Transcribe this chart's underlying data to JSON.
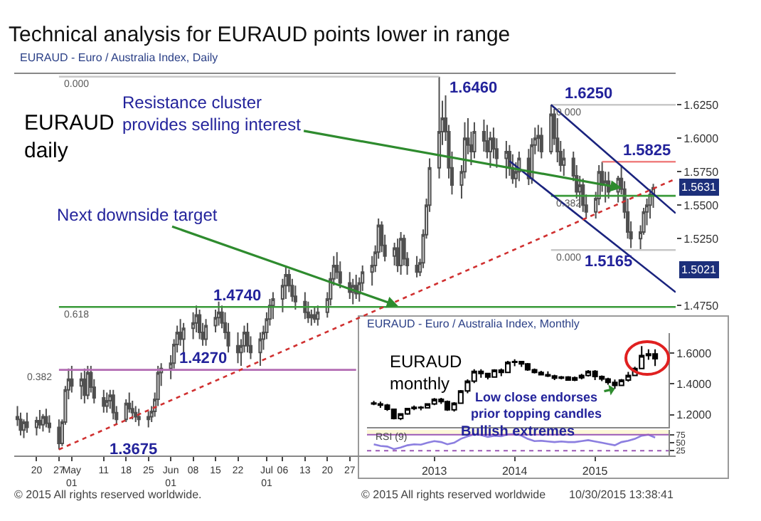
{
  "chart_data": [
    {
      "type": "candlestick",
      "title": "Technical analysis for EURAUD points lower in range",
      "subtitle": "EURAUD - Euro / Australia Index, Daily",
      "color": "#505050",
      "x": [
        "2015-04-14",
        "2015-04-15",
        "2015-04-16",
        "2015-04-17",
        "2015-04-20",
        "2015-04-21",
        "2015-04-22",
        "2015-04-23",
        "2015-04-24",
        "2015-04-27",
        "2015-04-28",
        "2015-04-29",
        "2015-04-30",
        "2015-05-01",
        "2015-05-04",
        "2015-05-05",
        "2015-05-06",
        "2015-05-07",
        "2015-05-08",
        "2015-05-11",
        "2015-05-12",
        "2015-05-13",
        "2015-05-14",
        "2015-05-15",
        "2015-05-18",
        "2015-05-19",
        "2015-05-20",
        "2015-05-21",
        "2015-05-22",
        "2015-05-25",
        "2015-05-26",
        "2015-05-27",
        "2015-05-28",
        "2015-05-29",
        "2015-06-01",
        "2015-06-02",
        "2015-06-03",
        "2015-06-04",
        "2015-06-05",
        "2015-06-08",
        "2015-06-09",
        "2015-06-10",
        "2015-06-11",
        "2015-06-12",
        "2015-06-15",
        "2015-06-16",
        "2015-06-17",
        "2015-06-18",
        "2015-06-19",
        "2015-06-22",
        "2015-06-23",
        "2015-06-24",
        "2015-06-25",
        "2015-06-26",
        "2015-06-29",
        "2015-06-30",
        "2015-07-01",
        "2015-07-02",
        "2015-07-03",
        "2015-07-06",
        "2015-07-07",
        "2015-07-08",
        "2015-07-09",
        "2015-07-10",
        "2015-07-13",
        "2015-07-14",
        "2015-07-15",
        "2015-07-16",
        "2015-07-17",
        "2015-07-20",
        "2015-07-21",
        "2015-07-22",
        "2015-07-23",
        "2015-07-24",
        "2015-07-27",
        "2015-07-28",
        "2015-07-29",
        "2015-07-30",
        "2015-07-31",
        "2015-08-03",
        "2015-08-04",
        "2015-08-05",
        "2015-08-06",
        "2015-08-07",
        "2015-08-10",
        "2015-08-11",
        "2015-08-12",
        "2015-08-13",
        "2015-08-14",
        "2015-08-17",
        "2015-08-18",
        "2015-08-19",
        "2015-08-20",
        "2015-08-21",
        "2015-08-24",
        "2015-08-25",
        "2015-08-26",
        "2015-08-27",
        "2015-08-28",
        "2015-08-31",
        "2015-09-01",
        "2015-09-02",
        "2015-09-03",
        "2015-09-04",
        "2015-09-07",
        "2015-09-08",
        "2015-09-09",
        "2015-09-10",
        "2015-09-11",
        "2015-09-14",
        "2015-09-15",
        "2015-09-16",
        "2015-09-17",
        "2015-09-18",
        "2015-09-21",
        "2015-09-22",
        "2015-09-23",
        "2015-09-24",
        "2015-09-25",
        "2015-09-28",
        "2015-09-29",
        "2015-09-30",
        "2015-10-01",
        "2015-10-02",
        "2015-10-05",
        "2015-10-06",
        "2015-10-07",
        "2015-10-08",
        "2015-10-09",
        "2015-10-12",
        "2015-10-13",
        "2015-10-14",
        "2015-10-15",
        "2015-10-16",
        "2015-10-19",
        "2015-10-20",
        "2015-10-21",
        "2015-10-22",
        "2015-10-23",
        "2015-10-26",
        "2015-10-27",
        "2015-10-28",
        "2015-10-29",
        "2015-10-30"
      ],
      "ohlc": [
        [
          1.392,
          1.4,
          1.385,
          1.39
        ],
        [
          1.39,
          1.395,
          1.378,
          1.382
        ],
        [
          1.382,
          1.39,
          1.376,
          1.388
        ],
        [
          1.388,
          1.395,
          1.38,
          1.384
        ],
        [
          1.384,
          1.392,
          1.378,
          1.389
        ],
        [
          1.389,
          1.397,
          1.383,
          1.386
        ],
        [
          1.386,
          1.394,
          1.381,
          1.392
        ],
        [
          1.392,
          1.398,
          1.384,
          1.387
        ],
        [
          1.387,
          1.393,
          1.38,
          1.384
        ],
        [
          1.384,
          1.39,
          1.3675,
          1.372
        ],
        [
          1.372,
          1.39,
          1.37,
          1.388
        ],
        [
          1.388,
          1.415,
          1.386,
          1.412
        ],
        [
          1.412,
          1.428,
          1.405,
          1.42
        ],
        [
          1.42,
          1.43,
          1.41,
          1.415
        ],
        [
          1.415,
          1.425,
          1.405,
          1.42
        ],
        [
          1.42,
          1.428,
          1.402,
          1.408
        ],
        [
          1.408,
          1.43,
          1.405,
          1.425
        ],
        [
          1.425,
          1.43,
          1.41,
          1.414
        ],
        [
          1.414,
          1.42,
          1.402,
          1.406
        ],
        [
          1.406,
          1.412,
          1.395,
          1.4
        ],
        [
          1.4,
          1.41,
          1.395,
          1.404
        ],
        [
          1.404,
          1.412,
          1.398,
          1.408
        ],
        [
          1.408,
          1.412,
          1.39,
          1.395
        ],
        [
          1.395,
          1.4,
          1.386,
          1.39
        ],
        [
          1.39,
          1.405,
          1.388,
          1.402
        ],
        [
          1.402,
          1.41,
          1.395,
          1.398
        ],
        [
          1.398,
          1.404,
          1.39,
          1.395
        ],
        [
          1.395,
          1.4,
          1.388,
          1.392
        ],
        [
          1.392,
          1.398,
          1.385,
          1.39
        ],
        [
          1.39,
          1.396,
          1.384,
          1.392
        ],
        [
          1.392,
          1.4,
          1.388,
          1.396
        ],
        [
          1.396,
          1.41,
          1.392,
          1.405
        ],
        [
          1.405,
          1.43,
          1.4,
          1.425
        ],
        [
          1.425,
          1.432,
          1.415,
          1.428
        ],
        [
          1.428,
          1.438,
          1.42,
          1.432
        ],
        [
          1.432,
          1.45,
          1.428,
          1.446
        ],
        [
          1.446,
          1.46,
          1.44,
          1.455
        ],
        [
          1.455,
          1.465,
          1.445,
          1.45
        ],
        [
          1.45,
          1.462,
          1.44,
          1.458
        ],
        [
          1.458,
          1.47,
          1.45,
          1.462
        ],
        [
          1.462,
          1.475,
          1.455,
          1.468
        ],
        [
          1.468,
          1.472,
          1.45,
          1.455
        ],
        [
          1.455,
          1.462,
          1.445,
          1.45
        ],
        [
          1.45,
          1.465,
          1.445,
          1.46
        ],
        [
          1.46,
          1.472,
          1.455,
          1.466
        ],
        [
          1.466,
          1.478,
          1.46,
          1.47
        ],
        [
          1.47,
          1.475,
          1.458,
          1.462
        ],
        [
          1.462,
          1.47,
          1.45,
          1.455
        ],
        [
          1.455,
          1.462,
          1.44,
          1.445
        ],
        [
          1.445,
          1.455,
          1.432,
          1.44
        ],
        [
          1.44,
          1.45,
          1.43,
          1.445
        ],
        [
          1.445,
          1.46,
          1.44,
          1.455
        ],
        [
          1.455,
          1.462,
          1.44,
          1.445
        ],
        [
          1.445,
          1.452,
          1.435,
          1.44
        ],
        [
          1.44,
          1.455,
          1.43,
          1.45
        ],
        [
          1.45,
          1.46,
          1.442,
          1.455
        ],
        [
          1.455,
          1.47,
          1.45,
          1.465
        ],
        [
          1.465,
          1.48,
          1.46,
          1.475
        ],
        [
          1.475,
          1.485,
          1.465,
          1.48
        ],
        [
          1.48,
          1.495,
          1.47,
          1.49
        ],
        [
          1.49,
          1.505,
          1.48,
          1.498
        ],
        [
          1.498,
          1.502,
          1.485,
          1.49
        ],
        [
          1.49,
          1.495,
          1.478,
          1.482
        ],
        [
          1.482,
          1.49,
          1.472,
          1.478
        ],
        [
          1.478,
          1.485,
          1.465,
          1.47
        ],
        [
          1.47,
          1.478,
          1.462,
          1.466
        ],
        [
          1.466,
          1.472,
          1.46,
          1.468
        ],
        [
          1.468,
          1.474,
          1.462,
          1.465
        ],
        [
          1.465,
          1.475,
          1.46,
          1.47
        ],
        [
          1.47,
          1.485,
          1.466,
          1.48
        ],
        [
          1.48,
          1.5,
          1.475,
          1.495
        ],
        [
          1.495,
          1.512,
          1.49,
          1.505
        ],
        [
          1.505,
          1.515,
          1.495,
          1.5
        ],
        [
          1.5,
          1.508,
          1.488,
          1.492
        ],
        [
          1.492,
          1.5,
          1.48,
          1.485
        ],
        [
          1.485,
          1.495,
          1.476,
          1.49
        ],
        [
          1.49,
          1.498,
          1.48,
          1.484
        ],
        [
          1.484,
          1.496,
          1.478,
          1.492
        ],
        [
          1.492,
          1.505,
          1.486,
          1.5
        ],
        [
          1.5,
          1.512,
          1.49,
          1.505
        ],
        [
          1.505,
          1.52,
          1.5,
          1.515
        ],
        [
          1.515,
          1.54,
          1.51,
          1.535
        ],
        [
          1.535,
          1.538,
          1.515,
          1.52
        ],
        [
          1.52,
          1.528,
          1.508,
          1.512
        ],
        [
          1.512,
          1.522,
          1.505,
          1.518
        ],
        [
          1.518,
          1.525,
          1.5,
          1.505
        ],
        [
          1.505,
          1.53,
          1.498,
          1.525
        ],
        [
          1.525,
          1.528,
          1.505,
          1.51
        ],
        [
          1.51,
          1.515,
          1.498,
          1.505
        ],
        [
          1.505,
          1.512,
          1.496,
          1.5
        ],
        [
          1.5,
          1.51,
          1.497,
          1.507
        ],
        [
          1.507,
          1.532,
          1.503,
          1.528
        ],
        [
          1.528,
          1.555,
          1.525,
          1.55
        ],
        [
          1.55,
          1.585,
          1.545,
          1.578
        ],
        [
          1.578,
          1.646,
          1.57,
          1.605
        ],
        [
          1.605,
          1.628,
          1.595,
          1.615
        ],
        [
          1.615,
          1.632,
          1.598,
          1.605
        ],
        [
          1.605,
          1.61,
          1.57,
          1.578
        ],
        [
          1.578,
          1.59,
          1.558,
          1.565
        ],
        [
          1.565,
          1.58,
          1.555,
          1.575
        ],
        [
          1.575,
          1.612,
          1.57,
          1.6
        ],
        [
          1.6,
          1.615,
          1.588,
          1.595
        ],
        [
          1.595,
          1.605,
          1.58,
          1.59
        ],
        [
          1.59,
          1.612,
          1.585,
          1.605
        ],
        [
          1.605,
          1.614,
          1.59,
          1.598
        ],
        [
          1.598,
          1.61,
          1.585,
          1.59
        ],
        [
          1.59,
          1.605,
          1.578,
          1.6
        ],
        [
          1.6,
          1.608,
          1.585,
          1.592
        ],
        [
          1.592,
          1.6,
          1.578,
          1.585
        ],
        [
          1.585,
          1.598,
          1.57,
          1.59
        ],
        [
          1.59,
          1.595,
          1.572,
          1.578
        ],
        [
          1.578,
          1.588,
          1.566,
          1.57
        ],
        [
          1.57,
          1.582,
          1.563,
          1.575
        ],
        [
          1.575,
          1.59,
          1.568,
          1.585
        ],
        [
          1.585,
          1.592,
          1.565,
          1.57
        ],
        [
          1.57,
          1.6,
          1.566,
          1.595
        ],
        [
          1.595,
          1.608,
          1.588,
          1.6
        ],
        [
          1.6,
          1.61,
          1.59,
          1.602
        ],
        [
          1.602,
          1.608,
          1.585,
          1.59
        ],
        [
          1.59,
          1.625,
          1.588,
          1.618
        ],
        [
          1.618,
          1.622,
          1.595,
          1.6
        ],
        [
          1.6,
          1.615,
          1.582,
          1.59
        ],
        [
          1.59,
          1.598,
          1.575,
          1.58
        ],
        [
          1.58,
          1.592,
          1.572,
          1.585
        ],
        [
          1.585,
          1.59,
          1.568,
          1.572
        ],
        [
          1.572,
          1.58,
          1.555,
          1.56
        ],
        [
          1.56,
          1.572,
          1.548,
          1.565
        ],
        [
          1.565,
          1.57,
          1.545,
          1.55
        ],
        [
          1.55,
          1.558,
          1.54,
          1.545
        ],
        [
          1.545,
          1.56,
          1.54,
          1.555
        ],
        [
          1.555,
          1.58,
          1.55,
          1.575
        ],
        [
          1.575,
          1.5825,
          1.56,
          1.565
        ],
        [
          1.565,
          1.575,
          1.552,
          1.568
        ],
        [
          1.568,
          1.575,
          1.555,
          1.56
        ],
        [
          1.56,
          1.572,
          1.552,
          1.57
        ],
        [
          1.57,
          1.58,
          1.558,
          1.562
        ],
        [
          1.562,
          1.568,
          1.54,
          1.545
        ],
        [
          1.545,
          1.555,
          1.525,
          1.53
        ],
        [
          1.53,
          1.538,
          1.518,
          1.525
        ],
        [
          1.525,
          1.535,
          1.5165,
          1.53
        ],
        [
          1.53,
          1.548,
          1.528,
          1.545
        ],
        [
          1.545,
          1.555,
          1.535,
          1.55
        ],
        [
          1.55,
          1.562,
          1.54,
          1.558
        ],
        [
          1.558,
          1.566,
          1.548,
          1.563
        ]
      ],
      "series": [
        {
          "type": "line",
          "color": "#c8c8c8",
          "x": [
            "2015-04-27",
            "2015-08-24"
          ],
          "values": [
            1.646,
            1.646
          ]
        },
        {
          "type": "line",
          "color": "#3a9a3a",
          "x": [
            "2015-04-27",
            "2015-11-06"
          ],
          "values": [
            1.474,
            1.474
          ]
        },
        {
          "type": "line",
          "color": "#b36bb3",
          "x": [
            "2015-04-27",
            "2015-07-29"
          ],
          "values": [
            1.427,
            1.427
          ]
        },
        {
          "type": "line",
          "color": "#c8c8c8",
          "x": [
            "2015-09-28",
            "2015-11-06"
          ],
          "values": [
            1.625,
            1.625
          ]
        },
        {
          "type": "line",
          "color": "#3a9a3a",
          "x": [
            "2015-09-28",
            "2015-11-06"
          ],
          "values": [
            1.557,
            1.557
          ]
        },
        {
          "type": "line",
          "color": "#c8c8c8",
          "x": [
            "2015-09-28",
            "2015-11-06"
          ],
          "values": [
            1.5165,
            1.5165
          ]
        },
        {
          "type": "line",
          "color": "#f08080",
          "x": [
            "2015-10-14",
            "2015-11-06"
          ],
          "values": [
            1.5825,
            1.5825
          ]
        },
        {
          "type": "line",
          "color": "#1a237e",
          "x": [
            "2015-09-28",
            "2015-11-06"
          ],
          "values": [
            1.625,
            1.544
          ]
        },
        {
          "type": "line",
          "color": "#1a237e",
          "x": [
            "2015-09-15",
            "2015-11-06"
          ],
          "values": [
            1.583,
            1.485
          ]
        },
        {
          "type": "line",
          "color": "#d03030",
          "line_style": "dotted",
          "x": [
            "2015-04-27",
            "2015-11-06"
          ],
          "values": [
            1.3675,
            1.5697
          ]
        }
      ],
      "xlim": [
        "2015-04-13",
        "2015-11-06"
      ],
      "xticks": [
        {
          "value": "2015-04-20",
          "label": "20"
        },
        {
          "value": "2015-04-27",
          "label": "27"
        },
        {
          "value": "2015-05-01",
          "label": "May\n01"
        },
        {
          "value": "2015-05-11",
          "label": "11"
        },
        {
          "value": "2015-05-18",
          "label": "18"
        },
        {
          "value": "2015-05-25",
          "label": "25"
        },
        {
          "value": "2015-06-01",
          "label": "Jun\n01"
        },
        {
          "value": "2015-06-08",
          "label": "08"
        },
        {
          "value": "2015-06-15",
          "label": "15"
        },
        {
          "value": "2015-06-22",
          "label": "22"
        },
        {
          "value": "2015-07-01",
          "label": "Jul\n01"
        },
        {
          "value": "2015-07-06",
          "label": "06"
        },
        {
          "value": "2015-07-13",
          "label": "13"
        },
        {
          "value": "2015-07-20",
          "label": "20"
        },
        {
          "value": "2015-07-27",
          "label": "27"
        }
      ],
      "ylim": [
        1.363,
        1.648
      ],
      "yticks": [
        {
          "value": 1.475,
          "label": "1.4750"
        },
        {
          "value": 1.525,
          "label": "1.5250"
        },
        {
          "value": 1.55,
          "label": "1.5500"
        },
        {
          "value": 1.575,
          "label": "1.5750"
        },
        {
          "value": 1.6,
          "label": "1.6000"
        },
        {
          "value": 1.625,
          "label": "1.6250"
        }
      ],
      "annotations": [
        {
          "text": "Resistance cluster\nprovides selling interest",
          "x": "2015-10-21",
          "y": 1.5625
        },
        {
          "text": "Next downside target",
          "x": "2015-08-12",
          "y": 1.474
        },
        "EURAUD\ndaily",
        {
          "text": "1.6460",
          "x": "2015-08-24",
          "y": 1.646
        },
        {
          "text": "1.6250",
          "x": "2015-09-28",
          "y": 1.625
        },
        {
          "text": "1.5825",
          "x": "2015-10-28",
          "y": 1.5825
        },
        {
          "text": "1.5165",
          "x": "2015-10-16",
          "y": 1.5165
        },
        {
          "text": "1.4740",
          "x": "2015-06-22",
          "y": 1.474
        },
        {
          "text": "1.4270",
          "x": "2015-06-11",
          "y": 1.427
        },
        "1.3675",
        {
          "text": "0.000",
          "x": "2015-04-27",
          "y": 1.646
        },
        {
          "text": "0.618",
          "x": "2015-04-27",
          "y": 1.474
        },
        {
          "text": "0.382",
          "x": "2015-04-27",
          "y": 1.427
        },
        {
          "text": "0.000",
          "x": "2015-09-28",
          "y": 1.625
        },
        {
          "text": "0.382",
          "x": "2015-09-28",
          "y": 1.557
        },
        {
          "text": "0.000",
          "x": "2015-09-28",
          "y": 1.5165
        },
        "1.5631",
        "1.5021",
        "© 2015 All rights reserved worldwide."
      ]
    },
    {
      "type": "candlestick",
      "subtitle": "EURAUD - Euro / Australia Index, Monthly",
      "color": "#000000",
      "x": [
        "2012-04",
        "2012-05",
        "2012-06",
        "2012-07",
        "2012-08",
        "2012-09",
        "2012-10",
        "2012-11",
        "2012-12",
        "2013-01",
        "2013-02",
        "2013-03",
        "2013-04",
        "2013-05",
        "2013-06",
        "2013-07",
        "2013-08",
        "2013-09",
        "2013-10",
        "2013-11",
        "2013-12",
        "2014-01",
        "2014-02",
        "2014-03",
        "2014-04",
        "2014-05",
        "2014-06",
        "2014-07",
        "2014-08",
        "2014-09",
        "2014-10",
        "2014-11",
        "2014-12",
        "2015-01",
        "2015-02",
        "2015-03",
        "2015-04",
        "2015-05",
        "2015-06",
        "2015-07",
        "2015-08",
        "2015-09",
        "2015-10"
      ],
      "ohlc": [
        [
          1.276,
          1.29,
          1.262,
          1.27
        ],
        [
          1.27,
          1.285,
          1.245,
          1.262
        ],
        [
          1.262,
          1.27,
          1.225,
          1.235
        ],
        [
          1.235,
          1.24,
          1.17,
          1.175
        ],
        [
          1.175,
          1.21,
          1.165,
          1.205
        ],
        [
          1.205,
          1.245,
          1.2,
          1.24
        ],
        [
          1.24,
          1.26,
          1.23,
          1.248
        ],
        [
          1.248,
          1.256,
          1.228,
          1.245
        ],
        [
          1.245,
          1.275,
          1.24,
          1.27
        ],
        [
          1.27,
          1.308,
          1.262,
          1.3
        ],
        [
          1.3,
          1.31,
          1.27,
          1.285
        ],
        [
          1.285,
          1.292,
          1.225,
          1.232
        ],
        [
          1.232,
          1.282,
          1.22,
          1.275
        ],
        [
          1.275,
          1.36,
          1.27,
          1.355
        ],
        [
          1.355,
          1.43,
          1.34,
          1.418
        ],
        [
          1.418,
          1.495,
          1.405,
          1.482
        ],
        [
          1.482,
          1.495,
          1.44,
          1.468
        ],
        [
          1.468,
          1.472,
          1.43,
          1.445
        ],
        [
          1.445,
          1.495,
          1.44,
          1.49
        ],
        [
          1.49,
          1.5,
          1.45,
          1.475
        ],
        [
          1.475,
          1.55,
          1.47,
          1.54
        ],
        [
          1.54,
          1.56,
          1.515,
          1.545
        ],
        [
          1.545,
          1.548,
          1.51,
          1.53
        ],
        [
          1.53,
          1.536,
          1.485,
          1.492
        ],
        [
          1.492,
          1.5,
          1.468,
          1.475
        ],
        [
          1.475,
          1.485,
          1.455,
          1.46
        ],
        [
          1.46,
          1.482,
          1.445,
          1.452
        ],
        [
          1.452,
          1.46,
          1.425,
          1.438
        ],
        [
          1.438,
          1.452,
          1.43,
          1.445
        ],
        [
          1.445,
          1.45,
          1.42,
          1.425
        ],
        [
          1.425,
          1.448,
          1.418,
          1.44
        ],
        [
          1.44,
          1.465,
          1.43,
          1.455
        ],
        [
          1.455,
          1.49,
          1.448,
          1.482
        ],
        [
          1.482,
          1.49,
          1.425,
          1.448
        ],
        [
          1.448,
          1.455,
          1.418,
          1.432
        ],
        [
          1.432,
          1.44,
          1.395,
          1.41
        ],
        [
          1.41,
          1.428,
          1.368,
          1.39
        ],
        [
          1.39,
          1.432,
          1.386,
          1.425
        ],
        [
          1.425,
          1.478,
          1.415,
          1.455
        ],
        [
          1.455,
          1.512,
          1.452,
          1.5
        ],
        [
          1.5,
          1.646,
          1.496,
          1.585
        ],
        [
          1.585,
          1.625,
          1.557,
          1.595
        ],
        [
          1.595,
          1.625,
          1.5165,
          1.5631
        ]
      ],
      "xlim": [
        "2012-03-01",
        "2015-12-01"
      ],
      "ylim": [
        1.12,
        1.73
      ],
      "yticks": [
        {
          "value": 1.2,
          "label": "1.2000"
        },
        {
          "value": 1.4,
          "label": "1.4000"
        },
        {
          "value": 1.6,
          "label": "1.6000"
        }
      ],
      "tick_labels": "y",
      "annotations": [
        "EURAUD\nmonthly",
        {
          "text": "Low close endorses\nprior topping candles",
          "x": "2015-04",
          "y": 1.368
        },
        "© 2015 All rights reserved worldwide",
        "10/30/2015 13:38:41"
      ]
    },
    {
      "type": "line",
      "color": "#8c7fe0",
      "x": [
        "2012-04",
        "2012-05",
        "2012-06",
        "2012-07",
        "2012-08",
        "2012-09",
        "2012-10",
        "2012-11",
        "2012-12",
        "2013-01",
        "2013-02",
        "2013-03",
        "2013-04",
        "2013-05",
        "2013-06",
        "2013-07",
        "2013-08",
        "2013-09",
        "2013-10",
        "2013-11",
        "2013-12",
        "2014-01",
        "2014-02",
        "2014-03",
        "2014-04",
        "2014-05",
        "2014-06",
        "2014-07",
        "2014-08",
        "2014-09",
        "2014-10",
        "2014-11",
        "2014-12",
        "2015-01",
        "2015-02",
        "2015-03",
        "2015-04",
        "2015-05",
        "2015-06",
        "2015-07",
        "2015-08",
        "2015-09",
        "2015-10"
      ],
      "values": [
        45,
        40,
        38,
        30,
        35,
        42,
        45,
        44,
        50,
        55,
        52,
        45,
        50,
        62,
        70,
        76,
        74,
        68,
        72,
        70,
        76,
        77,
        72,
        62,
        55,
        56,
        54,
        52,
        54,
        52,
        52,
        55,
        58,
        54,
        50,
        46,
        42,
        52,
        56,
        62,
        72,
        75,
        66
      ],
      "xlim": [
        "2012-03-01",
        "2015-12-01"
      ],
      "xticks": [
        {
          "value": "2013-01",
          "label": "2013"
        },
        {
          "value": "2014-01",
          "label": "2014"
        },
        {
          "value": "2015-01",
          "label": "2015"
        }
      ],
      "ylim": [
        10,
        90
      ],
      "yticks": [
        25,
        50,
        75
      ],
      "ref_lines": [
        {
          "axis": "y",
          "value": 75,
          "color": "#9b59b6"
        },
        {
          "axis": "y",
          "value": 25,
          "color": "#9b59b6",
          "line_style": "dotted"
        }
      ],
      "bands": [
        {
          "axis": "y",
          "from": 75,
          "to": 90,
          "label": "Bullish extremes",
          "color": "#fdf8d8"
        }
      ],
      "annotations": [
        "RSI (9)"
      ]
    }
  ]
}
